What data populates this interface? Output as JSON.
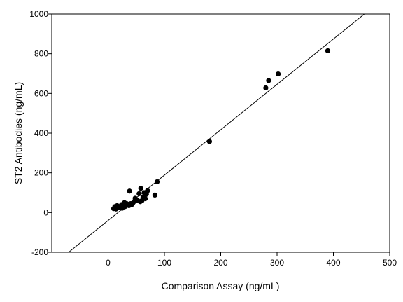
{
  "chart_data": {
    "type": "scatter",
    "title": "",
    "xlabel": "Comparison Assay (ng/mL)",
    "ylabel": "ST2 Antibodies (ng/mL)",
    "xlim": [
      -100,
      500
    ],
    "ylim": [
      -200,
      1000
    ],
    "xticks": [
      0,
      100,
      200,
      300,
      400,
      500
    ],
    "yticks": [
      -200,
      0,
      200,
      400,
      600,
      800,
      1000
    ],
    "grid": false,
    "legend": "none",
    "marker_color": "#000000",
    "series": [
      {
        "points": [
          {
            "x": 10,
            "y": 20
          },
          {
            "x": 12,
            "y": 30
          },
          {
            "x": 14,
            "y": 18
          },
          {
            "x": 16,
            "y": 35
          },
          {
            "x": 18,
            "y": 25
          },
          {
            "x": 20,
            "y": 28
          },
          {
            "x": 22,
            "y": 32
          },
          {
            "x": 24,
            "y": 40
          },
          {
            "x": 25,
            "y": 22
          },
          {
            "x": 27,
            "y": 38
          },
          {
            "x": 29,
            "y": 50
          },
          {
            "x": 30,
            "y": 30
          },
          {
            "x": 33,
            "y": 45
          },
          {
            "x": 35,
            "y": 42
          },
          {
            "x": 37,
            "y": 35
          },
          {
            "x": 38,
            "y": 108
          },
          {
            "x": 40,
            "y": 45
          },
          {
            "x": 42,
            "y": 40
          },
          {
            "x": 44,
            "y": 48
          },
          {
            "x": 46,
            "y": 55
          },
          {
            "x": 48,
            "y": 72
          },
          {
            "x": 52,
            "y": 62
          },
          {
            "x": 55,
            "y": 95
          },
          {
            "x": 57,
            "y": 55
          },
          {
            "x": 58,
            "y": 122
          },
          {
            "x": 60,
            "y": 60
          },
          {
            "x": 62,
            "y": 78
          },
          {
            "x": 64,
            "y": 100
          },
          {
            "x": 66,
            "y": 70
          },
          {
            "x": 68,
            "y": 92
          },
          {
            "x": 70,
            "y": 110
          },
          {
            "x": 83,
            "y": 88
          },
          {
            "x": 87,
            "y": 155
          },
          {
            "x": 180,
            "y": 358
          },
          {
            "x": 280,
            "y": 628
          },
          {
            "x": 285,
            "y": 665
          },
          {
            "x": 302,
            "y": 698
          },
          {
            "x": 390,
            "y": 815
          }
        ]
      }
    ],
    "fit_line": {
      "x": [
        -70,
        455
      ],
      "y": [
        -200,
        1000
      ]
    }
  }
}
